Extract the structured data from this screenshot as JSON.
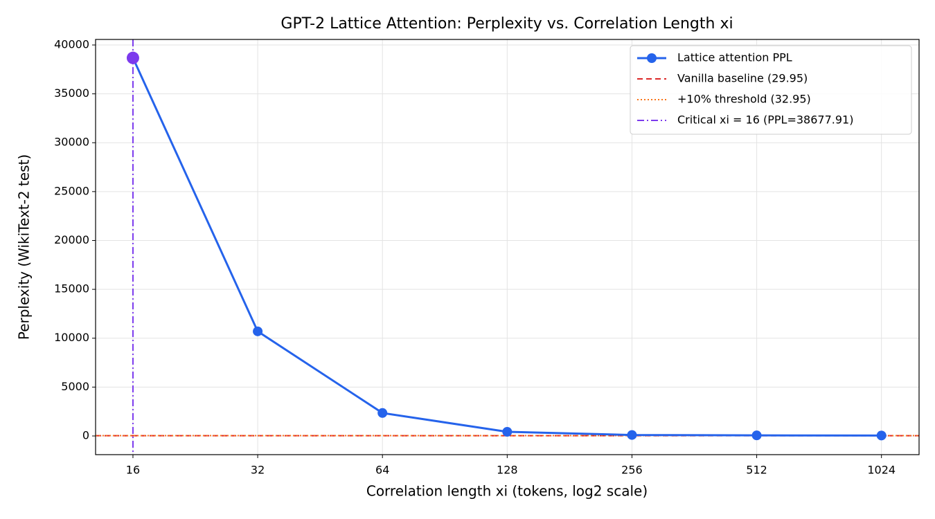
{
  "chart_data": {
    "type": "line",
    "title": "GPT-2 Lattice Attention: Perplexity vs. Correlation Length xi",
    "x_label": "Correlation length xi (tokens, log2 scale)",
    "y_label": "Perplexity (WikiText-2 test)",
    "x": [
      16,
      32,
      64,
      128,
      256,
      512,
      1024
    ],
    "series": [
      {
        "name": "Lattice attention PPL",
        "color": "#2563eb",
        "values": [
          38677.91,
          10700,
          2350,
          425,
          100,
          60,
          45
        ]
      }
    ],
    "highlight_color": "#7c3aed",
    "hlines": [
      {
        "name": "Vanilla baseline (29.95)",
        "value": 29.95,
        "color": "#dc2626",
        "dash": "8 5"
      },
      {
        "name": "+10% threshold (32.95)",
        "value": 32.95,
        "color": "#f97316",
        "dash": "2 3"
      }
    ],
    "vlines": [
      {
        "name": "Critical xi = 16 (PPL=38677.91)",
        "value": 16,
        "color": "#7c3aed",
        "dash": "10 4 2 4"
      }
    ],
    "x_log_base": 2,
    "xlim": [
      13,
      1262
    ],
    "xticks": [
      16,
      32,
      64,
      128,
      256,
      512,
      1024
    ],
    "ylim": [
      -1912,
      40566
    ],
    "yticks": [
      0,
      5000,
      10000,
      15000,
      20000,
      25000,
      30000,
      35000,
      40000
    ],
    "grid": true,
    "legend": "upper right"
  }
}
